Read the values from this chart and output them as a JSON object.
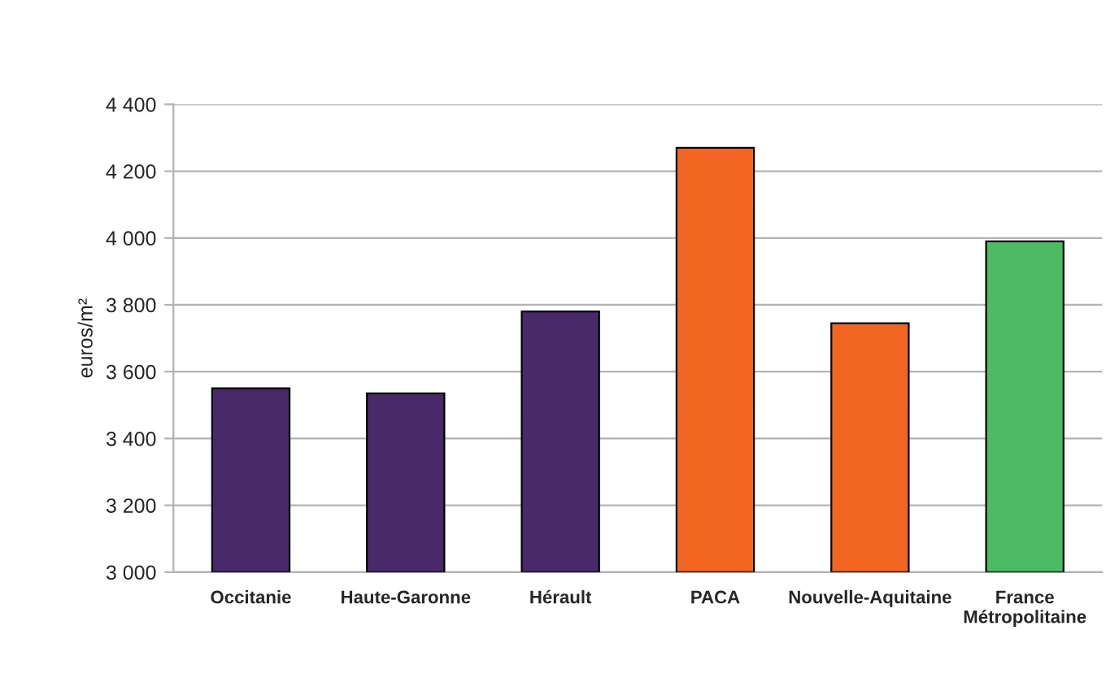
{
  "chart_data": {
    "type": "bar",
    "ylabel": "euros/m²",
    "categories": [
      "Occitanie",
      "Haute-Garonne",
      "Hérault",
      "PACA",
      "Nouvelle-Aquitaine",
      "France\nMétropolitaine"
    ],
    "values": [
      3550,
      3535,
      3780,
      4270,
      3745,
      3990
    ],
    "colors": [
      "#482a6b",
      "#482a6b",
      "#482a6b",
      "#f26522",
      "#f26522",
      "#4dbb63"
    ],
    "ylim": [
      3000,
      4400
    ],
    "yticks": [
      {
        "value": 3000,
        "label": "3 000"
      },
      {
        "value": 3200,
        "label": "3 200"
      },
      {
        "value": 3400,
        "label": "3 400"
      },
      {
        "value": 3600,
        "label": "3 600"
      },
      {
        "value": 3800,
        "label": "3 800"
      },
      {
        "value": 4000,
        "label": "4 000"
      },
      {
        "value": 4200,
        "label": "4 200"
      },
      {
        "value": 4400,
        "label": "4 400"
      }
    ],
    "grid": "y"
  }
}
